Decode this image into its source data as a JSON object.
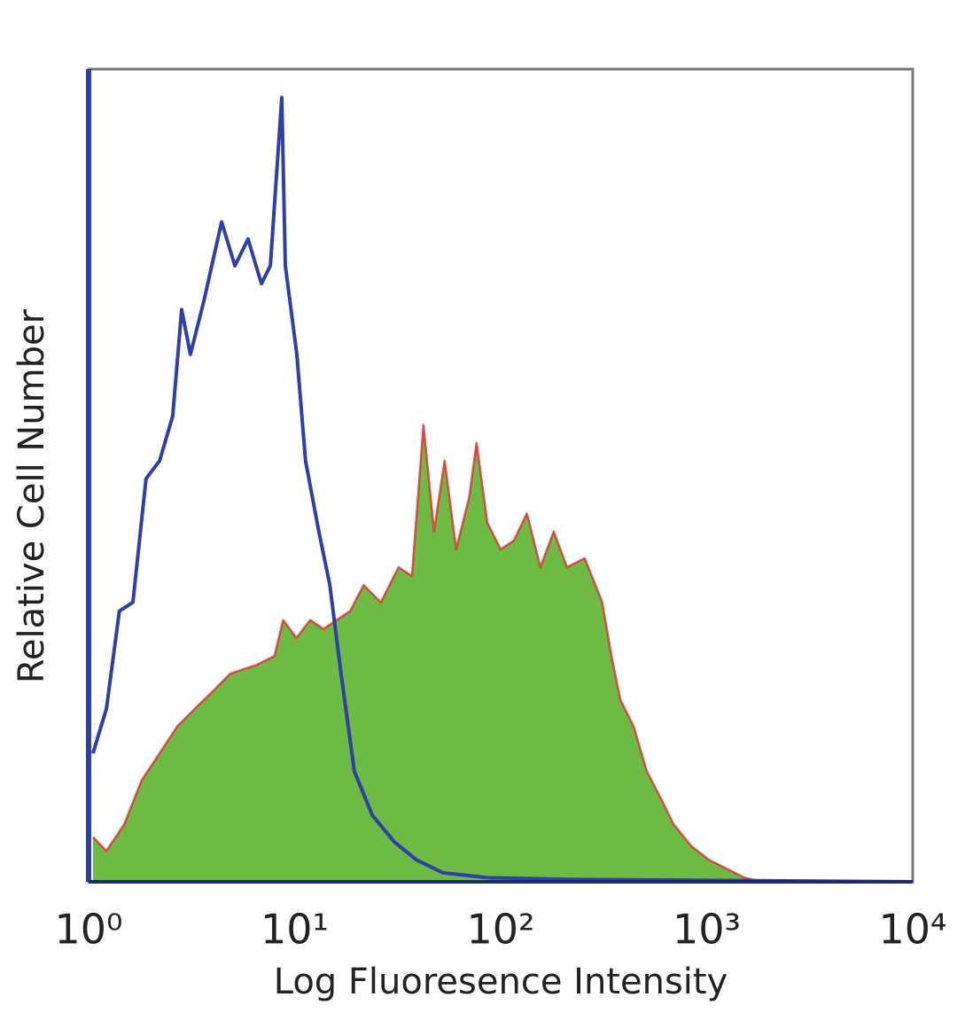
{
  "chart_data": {
    "type": "histogram-overlay",
    "xlabel": "Log Fluoresence Intensity",
    "ylabel": "Relative Cell Number",
    "xscale": "log",
    "xlim": [
      1,
      10000
    ],
    "xticks": [
      {
        "value": 1,
        "label": "10⁰"
      },
      {
        "value": 10,
        "label": "10¹"
      },
      {
        "value": 100,
        "label": "10²"
      },
      {
        "value": 1000,
        "label": "10³"
      },
      {
        "value": 10000,
        "label": "10⁴"
      }
    ],
    "ylim": [
      0,
      100
    ],
    "grid": false,
    "series": [
      {
        "color": "#6dbb45",
        "outline": "#e02a2a",
        "filled": true,
        "x": [
          1.05,
          1.22,
          1.49,
          1.81,
          2.21,
          2.69,
          3.28,
          4.0,
          4.87,
          6.56,
          7.99,
          8.8,
          10.2,
          11.9,
          13.8,
          16.0,
          18.6,
          21.6,
          26.2,
          32.0,
          37.1,
          42.2,
          47.5,
          53.5,
          60.8,
          70.5,
          76.4,
          86.1,
          100,
          116,
          134,
          156,
          181,
          210,
          256,
          311,
          345,
          381,
          442,
          512,
          595,
          690,
          841,
          1025,
          1250,
          1523,
          1857,
          10000
        ],
        "values": [
          5.5,
          3.8,
          7.1,
          12.5,
          15.8,
          19.1,
          21.3,
          23.4,
          25.6,
          26.7,
          27.8,
          32.2,
          30.0,
          32.2,
          31.1,
          32.2,
          33.3,
          36.5,
          34.4,
          38.7,
          37.6,
          56.2,
          43.1,
          51.8,
          40.9,
          47.4,
          54.0,
          44.2,
          40.9,
          42.0,
          45.3,
          38.7,
          43.1,
          38.7,
          39.8,
          34.4,
          27.8,
          22.4,
          19.1,
          13.6,
          10.4,
          7.1,
          4.4,
          2.7,
          1.6,
          0.5,
          0,
          0
        ]
      },
      {
        "color": "#2e3fa8",
        "filled": false,
        "x": [
          1.05,
          1.22,
          1.41,
          1.64,
          1.9,
          2.21,
          2.56,
          2.83,
          3.12,
          3.62,
          4.42,
          5.13,
          5.94,
          6.9,
          7.62,
          8.66,
          9.01,
          10.25,
          11.3,
          13.1,
          14.8,
          16.8,
          19.5,
          23.8,
          30.5,
          39.0,
          52.5,
          86.1,
          210,
          10000
        ],
        "values": [
          15.8,
          21.3,
          33.3,
          34.4,
          49.6,
          51.8,
          57.3,
          70.4,
          64.9,
          71.4,
          81.2,
          75.8,
          79.1,
          73.6,
          75.8,
          96.5,
          75.8,
          64.9,
          51.8,
          43.1,
          36.6,
          25.6,
          13.6,
          8.2,
          4.9,
          2.7,
          1.1,
          0.5,
          0.3,
          0
        ]
      }
    ]
  }
}
